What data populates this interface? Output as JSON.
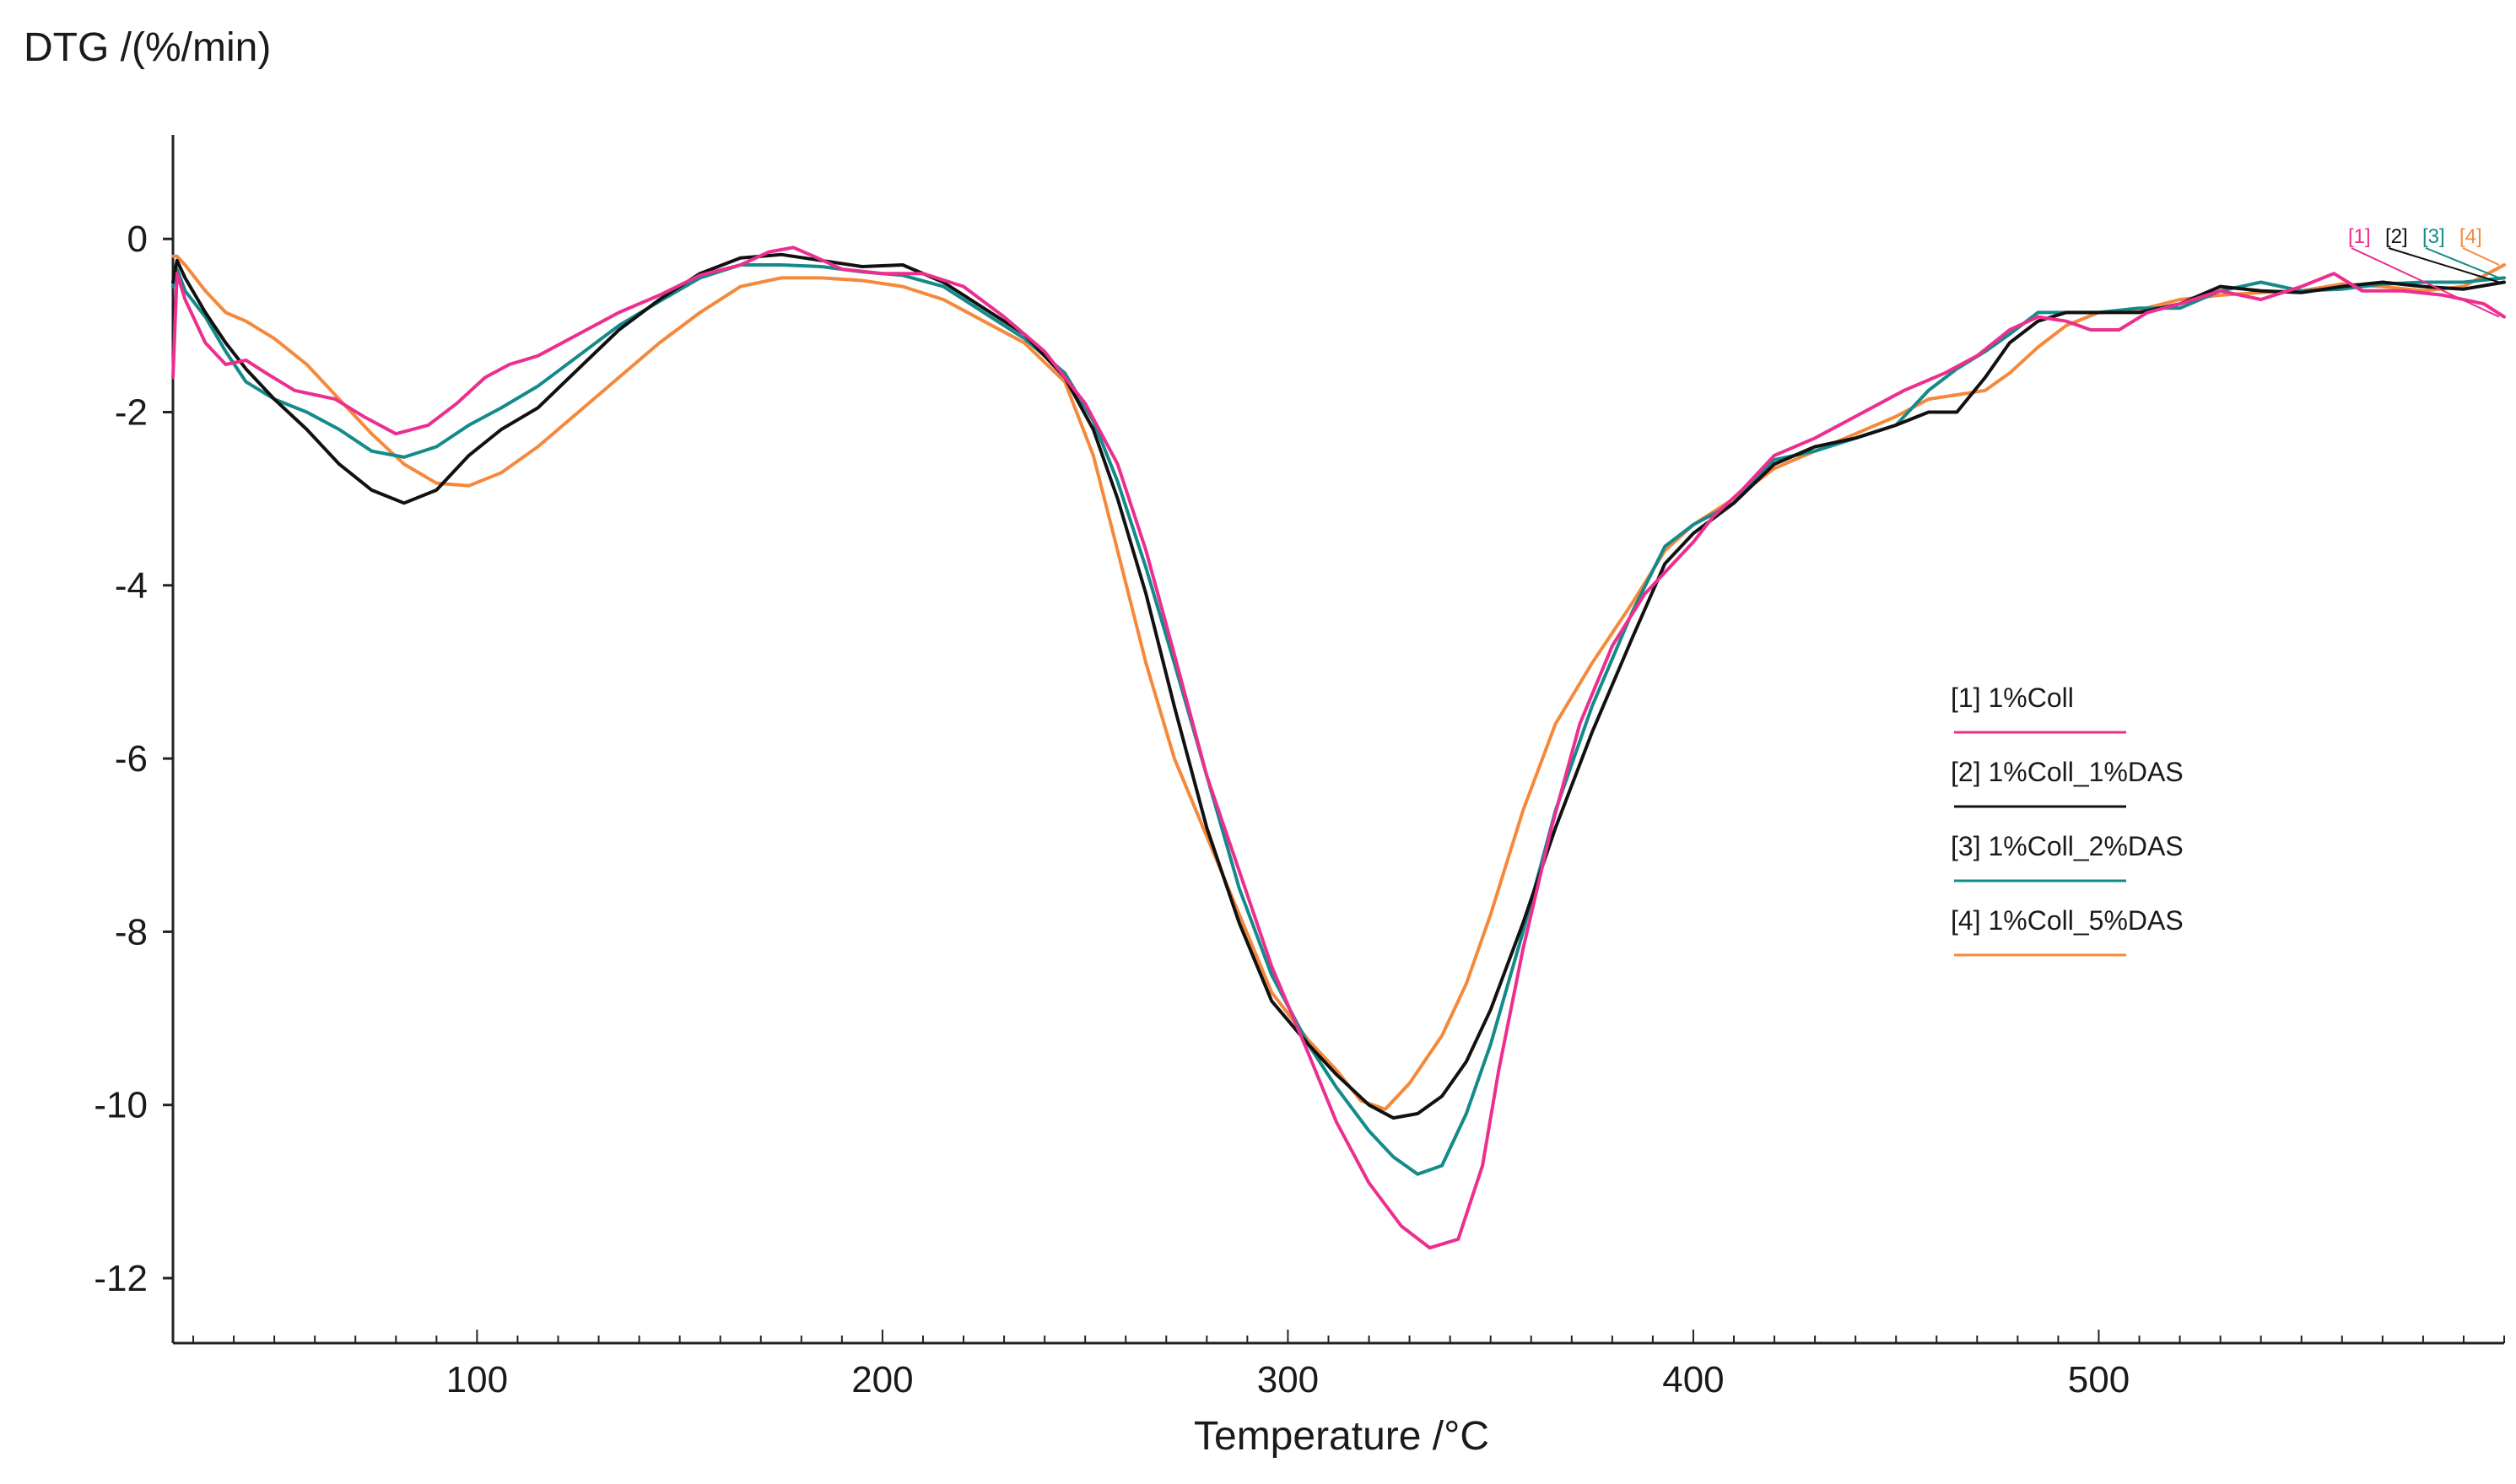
{
  "chart_data": {
    "type": "line",
    "title": "",
    "ylabel": "DTG /(%/min)",
    "xlabel": "Temperature /°C",
    "xlim": [
      25,
      600
    ],
    "ylim": [
      -12.75,
      1.2
    ],
    "xticks": [
      100,
      200,
      300,
      400,
      500
    ],
    "xtick_labels": [
      "100",
      "200",
      "300",
      "400",
      "500"
    ],
    "yticks": [
      0,
      -2,
      -4,
      -6,
      -8,
      -10,
      -12
    ],
    "ytick_labels": [
      "0",
      "-2",
      "-4",
      "-6",
      "-8",
      "-10",
      "-12"
    ],
    "x_minor_step": 10,
    "legend_position": "center-right",
    "series": [
      {
        "name": "[1] 1%Coll",
        "tag": "[1]",
        "color": "#ec2f8f",
        "points": [
          [
            25,
            -1.6
          ],
          [
            26,
            -0.4
          ],
          [
            28,
            -0.7
          ],
          [
            33,
            -1.2
          ],
          [
            38,
            -1.45
          ],
          [
            43,
            -1.4
          ],
          [
            48,
            -1.55
          ],
          [
            55,
            -1.75
          ],
          [
            65,
            -1.85
          ],
          [
            72,
            -2.05
          ],
          [
            80,
            -2.25
          ],
          [
            88,
            -2.15
          ],
          [
            95,
            -1.9
          ],
          [
            102,
            -1.6
          ],
          [
            108,
            -1.45
          ],
          [
            115,
            -1.35
          ],
          [
            125,
            -1.1
          ],
          [
            135,
            -0.85
          ],
          [
            145,
            -0.65
          ],
          [
            155,
            -0.42
          ],
          [
            165,
            -0.3
          ],
          [
            172,
            -0.15
          ],
          [
            178,
            -0.1
          ],
          [
            183,
            -0.2
          ],
          [
            190,
            -0.35
          ],
          [
            200,
            -0.4
          ],
          [
            210,
            -0.4
          ],
          [
            220,
            -0.55
          ],
          [
            230,
            -0.9
          ],
          [
            240,
            -1.3
          ],
          [
            250,
            -1.9
          ],
          [
            258,
            -2.6
          ],
          [
            265,
            -3.6
          ],
          [
            272,
            -4.8
          ],
          [
            280,
            -6.2
          ],
          [
            288,
            -7.3
          ],
          [
            296,
            -8.4
          ],
          [
            305,
            -9.4
          ],
          [
            312,
            -10.2
          ],
          [
            320,
            -10.9
          ],
          [
            328,
            -11.4
          ],
          [
            335,
            -11.65
          ],
          [
            342,
            -11.55
          ],
          [
            348,
            -10.7
          ],
          [
            352,
            -9.6
          ],
          [
            358,
            -8.2
          ],
          [
            365,
            -6.8
          ],
          [
            372,
            -5.6
          ],
          [
            380,
            -4.7
          ],
          [
            388,
            -4.1
          ],
          [
            395,
            -3.75
          ],
          [
            400,
            -3.5
          ],
          [
            405,
            -3.2
          ],
          [
            412,
            -2.9
          ],
          [
            420,
            -2.5
          ],
          [
            430,
            -2.3
          ],
          [
            440,
            -2.05
          ],
          [
            452,
            -1.75
          ],
          [
            462,
            -1.55
          ],
          [
            470,
            -1.35
          ],
          [
            478,
            -1.05
          ],
          [
            485,
            -0.9
          ],
          [
            492,
            -0.95
          ],
          [
            498,
            -1.05
          ],
          [
            505,
            -1.05
          ],
          [
            512,
            -0.85
          ],
          [
            520,
            -0.75
          ],
          [
            530,
            -0.6
          ],
          [
            540,
            -0.7
          ],
          [
            550,
            -0.55
          ],
          [
            558,
            -0.4
          ],
          [
            565,
            -0.6
          ],
          [
            575,
            -0.6
          ],
          [
            585,
            -0.65
          ],
          [
            595,
            -0.75
          ],
          [
            600,
            -0.9
          ]
        ]
      },
      {
        "name": "[2] 1%Coll_1%DAS",
        "tag": "[2]",
        "color": "#111111",
        "points": [
          [
            25,
            -0.5
          ],
          [
            26,
            -0.25
          ],
          [
            28,
            -0.45
          ],
          [
            33,
            -0.85
          ],
          [
            38,
            -1.2
          ],
          [
            43,
            -1.5
          ],
          [
            50,
            -1.85
          ],
          [
            58,
            -2.2
          ],
          [
            66,
            -2.6
          ],
          [
            74,
            -2.9
          ],
          [
            82,
            -3.05
          ],
          [
            90,
            -2.9
          ],
          [
            98,
            -2.5
          ],
          [
            106,
            -2.2
          ],
          [
            115,
            -1.95
          ],
          [
            125,
            -1.5
          ],
          [
            135,
            -1.05
          ],
          [
            145,
            -0.7
          ],
          [
            155,
            -0.4
          ],
          [
            165,
            -0.22
          ],
          [
            175,
            -0.18
          ],
          [
            185,
            -0.25
          ],
          [
            195,
            -0.32
          ],
          [
            205,
            -0.3
          ],
          [
            215,
            -0.5
          ],
          [
            225,
            -0.8
          ],
          [
            235,
            -1.1
          ],
          [
            245,
            -1.6
          ],
          [
            252,
            -2.2
          ],
          [
            258,
            -3.0
          ],
          [
            265,
            -4.1
          ],
          [
            272,
            -5.4
          ],
          [
            280,
            -6.8
          ],
          [
            288,
            -7.9
          ],
          [
            296,
            -8.8
          ],
          [
            305,
            -9.3
          ],
          [
            312,
            -9.65
          ],
          [
            320,
            -10.0
          ],
          [
            326,
            -10.15
          ],
          [
            332,
            -10.1
          ],
          [
            338,
            -9.9
          ],
          [
            344,
            -9.5
          ],
          [
            350,
            -8.9
          ],
          [
            358,
            -7.9
          ],
          [
            366,
            -6.8
          ],
          [
            375,
            -5.7
          ],
          [
            385,
            -4.6
          ],
          [
            393,
            -3.75
          ],
          [
            400,
            -3.4
          ],
          [
            410,
            -3.05
          ],
          [
            420,
            -2.6
          ],
          [
            430,
            -2.4
          ],
          [
            440,
            -2.3
          ],
          [
            450,
            -2.15
          ],
          [
            458,
            -2.0
          ],
          [
            465,
            -2.0
          ],
          [
            472,
            -1.6
          ],
          [
            478,
            -1.2
          ],
          [
            485,
            -0.95
          ],
          [
            492,
            -0.85
          ],
          [
            500,
            -0.85
          ],
          [
            510,
            -0.85
          ],
          [
            520,
            -0.75
          ],
          [
            530,
            -0.55
          ],
          [
            540,
            -0.6
          ],
          [
            550,
            -0.62
          ],
          [
            560,
            -0.55
          ],
          [
            570,
            -0.5
          ],
          [
            580,
            -0.55
          ],
          [
            590,
            -0.58
          ],
          [
            600,
            -0.5
          ]
        ]
      },
      {
        "name": "[3] 1%Coll_2%DAS",
        "tag": "[3]",
        "color": "#158a8a",
        "points": [
          [
            25,
            -0.55
          ],
          [
            26,
            -0.35
          ],
          [
            28,
            -0.6
          ],
          [
            33,
            -0.9
          ],
          [
            38,
            -1.3
          ],
          [
            43,
            -1.65
          ],
          [
            50,
            -1.85
          ],
          [
            58,
            -2.0
          ],
          [
            66,
            -2.2
          ],
          [
            74,
            -2.45
          ],
          [
            82,
            -2.52
          ],
          [
            90,
            -2.4
          ],
          [
            98,
            -2.15
          ],
          [
            106,
            -1.95
          ],
          [
            115,
            -1.7
          ],
          [
            125,
            -1.35
          ],
          [
            135,
            -1.0
          ],
          [
            145,
            -0.72
          ],
          [
            155,
            -0.45
          ],
          [
            165,
            -0.3
          ],
          [
            175,
            -0.3
          ],
          [
            185,
            -0.32
          ],
          [
            195,
            -0.38
          ],
          [
            205,
            -0.42
          ],
          [
            215,
            -0.55
          ],
          [
            225,
            -0.85
          ],
          [
            235,
            -1.15
          ],
          [
            245,
            -1.55
          ],
          [
            252,
            -2.1
          ],
          [
            258,
            -2.8
          ],
          [
            265,
            -3.8
          ],
          [
            272,
            -4.9
          ],
          [
            280,
            -6.2
          ],
          [
            288,
            -7.5
          ],
          [
            296,
            -8.5
          ],
          [
            305,
            -9.3
          ],
          [
            312,
            -9.8
          ],
          [
            320,
            -10.3
          ],
          [
            326,
            -10.6
          ],
          [
            332,
            -10.8
          ],
          [
            338,
            -10.7
          ],
          [
            344,
            -10.1
          ],
          [
            350,
            -9.3
          ],
          [
            358,
            -8.0
          ],
          [
            366,
            -6.6
          ],
          [
            375,
            -5.4
          ],
          [
            385,
            -4.3
          ],
          [
            393,
            -3.55
          ],
          [
            400,
            -3.3
          ],
          [
            410,
            -3.05
          ],
          [
            420,
            -2.55
          ],
          [
            430,
            -2.45
          ],
          [
            440,
            -2.3
          ],
          [
            450,
            -2.15
          ],
          [
            458,
            -1.75
          ],
          [
            465,
            -1.5
          ],
          [
            472,
            -1.3
          ],
          [
            478,
            -1.1
          ],
          [
            485,
            -0.85
          ],
          [
            492,
            -0.85
          ],
          [
            500,
            -0.85
          ],
          [
            510,
            -0.8
          ],
          [
            520,
            -0.8
          ],
          [
            530,
            -0.6
          ],
          [
            540,
            -0.5
          ],
          [
            550,
            -0.6
          ],
          [
            560,
            -0.58
          ],
          [
            570,
            -0.52
          ],
          [
            580,
            -0.5
          ],
          [
            590,
            -0.5
          ],
          [
            600,
            -0.45
          ]
        ]
      },
      {
        "name": "[4] 1%Coll_5%DAS",
        "tag": "[4]",
        "color": "#f4893b",
        "points": [
          [
            25,
            -0.2
          ],
          [
            26,
            -0.2
          ],
          [
            28,
            -0.3
          ],
          [
            33,
            -0.6
          ],
          [
            38,
            -0.85
          ],
          [
            43,
            -0.95
          ],
          [
            50,
            -1.15
          ],
          [
            58,
            -1.45
          ],
          [
            66,
            -1.85
          ],
          [
            74,
            -2.25
          ],
          [
            82,
            -2.6
          ],
          [
            90,
            -2.82
          ],
          [
            98,
            -2.85
          ],
          [
            106,
            -2.7
          ],
          [
            115,
            -2.4
          ],
          [
            125,
            -2.0
          ],
          [
            135,
            -1.6
          ],
          [
            145,
            -1.2
          ],
          [
            155,
            -0.85
          ],
          [
            165,
            -0.55
          ],
          [
            175,
            -0.45
          ],
          [
            185,
            -0.45
          ],
          [
            195,
            -0.48
          ],
          [
            205,
            -0.55
          ],
          [
            215,
            -0.7
          ],
          [
            225,
            -0.95
          ],
          [
            235,
            -1.2
          ],
          [
            245,
            -1.65
          ],
          [
            252,
            -2.5
          ],
          [
            258,
            -3.6
          ],
          [
            265,
            -4.9
          ],
          [
            272,
            -6.0
          ],
          [
            280,
            -6.9
          ],
          [
            288,
            -7.8
          ],
          [
            296,
            -8.7
          ],
          [
            305,
            -9.25
          ],
          [
            312,
            -9.6
          ],
          [
            318,
            -9.95
          ],
          [
            324,
            -10.05
          ],
          [
            330,
            -9.75
          ],
          [
            338,
            -9.2
          ],
          [
            344,
            -8.6
          ],
          [
            350,
            -7.8
          ],
          [
            358,
            -6.6
          ],
          [
            366,
            -5.6
          ],
          [
            375,
            -4.9
          ],
          [
            385,
            -4.2
          ],
          [
            393,
            -3.6
          ],
          [
            400,
            -3.3
          ],
          [
            410,
            -3.0
          ],
          [
            420,
            -2.65
          ],
          [
            430,
            -2.45
          ],
          [
            440,
            -2.25
          ],
          [
            450,
            -2.05
          ],
          [
            458,
            -1.85
          ],
          [
            465,
            -1.8
          ],
          [
            472,
            -1.75
          ],
          [
            478,
            -1.55
          ],
          [
            485,
            -1.25
          ],
          [
            492,
            -1.0
          ],
          [
            500,
            -0.85
          ],
          [
            510,
            -0.82
          ],
          [
            520,
            -0.7
          ],
          [
            530,
            -0.65
          ],
          [
            540,
            -0.62
          ],
          [
            550,
            -0.6
          ],
          [
            560,
            -0.52
          ],
          [
            570,
            -0.55
          ],
          [
            580,
            -0.6
          ],
          [
            590,
            -0.55
          ],
          [
            600,
            -0.3
          ]
        ]
      }
    ]
  }
}
